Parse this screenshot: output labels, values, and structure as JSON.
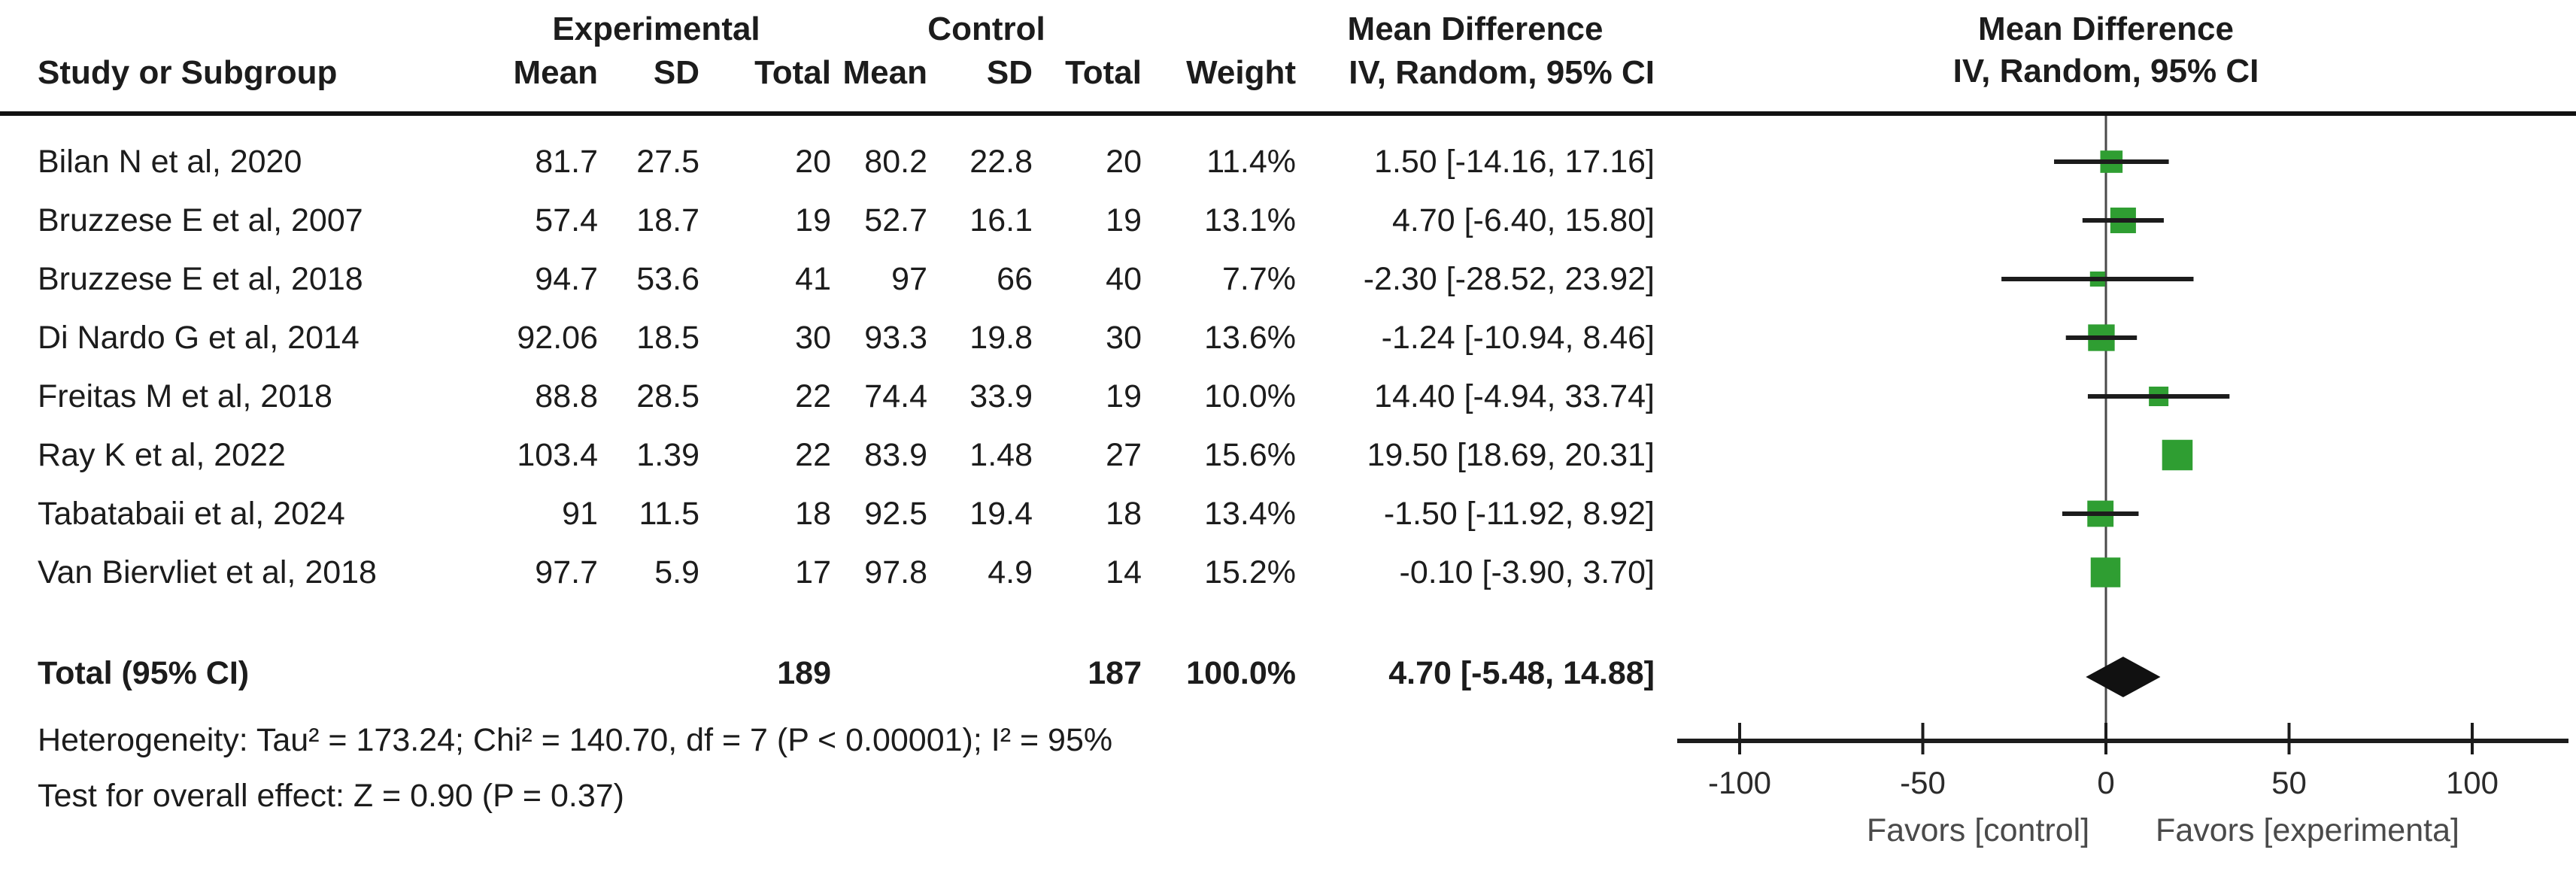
{
  "header": {
    "col_study": "Study or Subgroup",
    "group_experimental": "Experimental",
    "group_control": "Control",
    "col_mean": "Mean",
    "col_sd": "SD",
    "col_total": "Total",
    "col_weight": "Weight",
    "md_title": "Mean Difference",
    "md_sub": "IV, Random, 95% CI",
    "plot_title": "Mean Difference",
    "plot_sub": "IV, Random, 95% CI"
  },
  "rows": [
    {
      "study": "Bilan N et al, 2020",
      "mean_e": "81.7",
      "sd_e": "27.5",
      "total_e": "20",
      "mean_c": "80.2",
      "sd_c": "22.8",
      "total_c": "20",
      "weight": "11.4%",
      "ci": "1.50 [-14.16, 17.16]"
    },
    {
      "study": "Bruzzese E et al, 2007",
      "mean_e": "57.4",
      "sd_e": "18.7",
      "total_e": "19",
      "mean_c": "52.7",
      "sd_c": "16.1",
      "total_c": "19",
      "weight": "13.1%",
      "ci": "4.70 [-6.40, 15.80]"
    },
    {
      "study": "Bruzzese E et al, 2018",
      "mean_e": "94.7",
      "sd_e": "53.6",
      "total_e": "41",
      "mean_c": "97",
      "sd_c": "66",
      "total_c": "40",
      "weight": "7.7%",
      "ci": "-2.30 [-28.52, 23.92]"
    },
    {
      "study": "Di Nardo G et al, 2014",
      "mean_e": "92.06",
      "sd_e": "18.5",
      "total_e": "30",
      "mean_c": "93.3",
      "sd_c": "19.8",
      "total_c": "30",
      "weight": "13.6%",
      "ci": "-1.24 [-10.94, 8.46]"
    },
    {
      "study": "Freitas M et al, 2018",
      "mean_e": "88.8",
      "sd_e": "28.5",
      "total_e": "22",
      "mean_c": "74.4",
      "sd_c": "33.9",
      "total_c": "19",
      "weight": "10.0%",
      "ci": "14.40 [-4.94, 33.74]"
    },
    {
      "study": "Ray K et al, 2022",
      "mean_e": "103.4",
      "sd_e": "1.39",
      "total_e": "22",
      "mean_c": "83.9",
      "sd_c": "1.48",
      "total_c": "27",
      "weight": "15.6%",
      "ci": "19.50 [18.69, 20.31]"
    },
    {
      "study": "Tabatabaii et al, 2024",
      "mean_e": "91",
      "sd_e": "11.5",
      "total_e": "18",
      "mean_c": "92.5",
      "sd_c": "19.4",
      "total_c": "18",
      "weight": "13.4%",
      "ci": "-1.50 [-11.92, 8.92]"
    },
    {
      "study": "Van Biervliet et al, 2018",
      "mean_e": "97.7",
      "sd_e": "5.9",
      "total_e": "17",
      "mean_c": "97.8",
      "sd_c": "4.9",
      "total_c": "14",
      "weight": "15.2%",
      "ci": "-0.10 [-3.90, 3.70]"
    }
  ],
  "total_row": {
    "label": "Total (95% CI)",
    "total_e": "189",
    "total_c": "187",
    "weight": "100.0%",
    "ci": "4.70 [-5.48, 14.88]"
  },
  "footer": {
    "heterogeneity": "Heterogeneity: Tau² = 173.24; Chi² = 140.70, df = 7 (P < 0.00001); I² = 95%",
    "overall_test": "Test for overall effect: Z = 0.90 (P = 0.37)"
  },
  "colors": {
    "marker_green": "#2f9e32",
    "diamond_black": "#111111",
    "line_black": "#1c1c1c",
    "axis_text": "#2b2b2b",
    "favors_gray": "#4a4a4a"
  },
  "chart_data": {
    "type": "scatter",
    "subtype": "forest-plot",
    "title": "Mean Difference",
    "effect_measure": "IV, Random, 95% CI",
    "x_axis": {
      "min": -100,
      "max": 100,
      "ticks": [
        -100,
        -50,
        0,
        50,
        100
      ],
      "label_left": "Favors [control]",
      "label_right": "Favors [experimenta]"
    },
    "points": [
      {
        "label": "Bilan N et al, 2020",
        "md": 1.5,
        "lo": -14.16,
        "hi": 17.16,
        "weight": 11.4
      },
      {
        "label": "Bruzzese E et al, 2007",
        "md": 4.7,
        "lo": -6.4,
        "hi": 15.8,
        "weight": 13.1
      },
      {
        "label": "Bruzzese E et al, 2018",
        "md": -2.3,
        "lo": -28.52,
        "hi": 23.92,
        "weight": 7.7
      },
      {
        "label": "Di Nardo G et al, 2014",
        "md": -1.24,
        "lo": -10.94,
        "hi": 8.46,
        "weight": 13.6
      },
      {
        "label": "Freitas M et al, 2018",
        "md": 14.4,
        "lo": -4.94,
        "hi": 33.74,
        "weight": 10.0
      },
      {
        "label": "Ray K et al, 2022",
        "md": 19.5,
        "lo": 18.69,
        "hi": 20.31,
        "weight": 15.6
      },
      {
        "label": "Tabatabaii et al, 2024",
        "md": -1.5,
        "lo": -11.92,
        "hi": 8.92,
        "weight": 13.4
      },
      {
        "label": "Van Biervliet et al, 2018",
        "md": -0.1,
        "lo": -3.9,
        "hi": 3.7,
        "weight": 15.2
      }
    ],
    "total": {
      "label": "Total (95% CI)",
      "md": 4.7,
      "lo": -5.48,
      "hi": 14.88,
      "weight": 100.0,
      "experimental_total": 189,
      "control_total": 187
    },
    "stats": {
      "tau2": 173.24,
      "chi2": 140.7,
      "df": 7,
      "het_p": "< 0.00001",
      "i2_pct": 95,
      "z": 0.9,
      "p": 0.37
    }
  }
}
